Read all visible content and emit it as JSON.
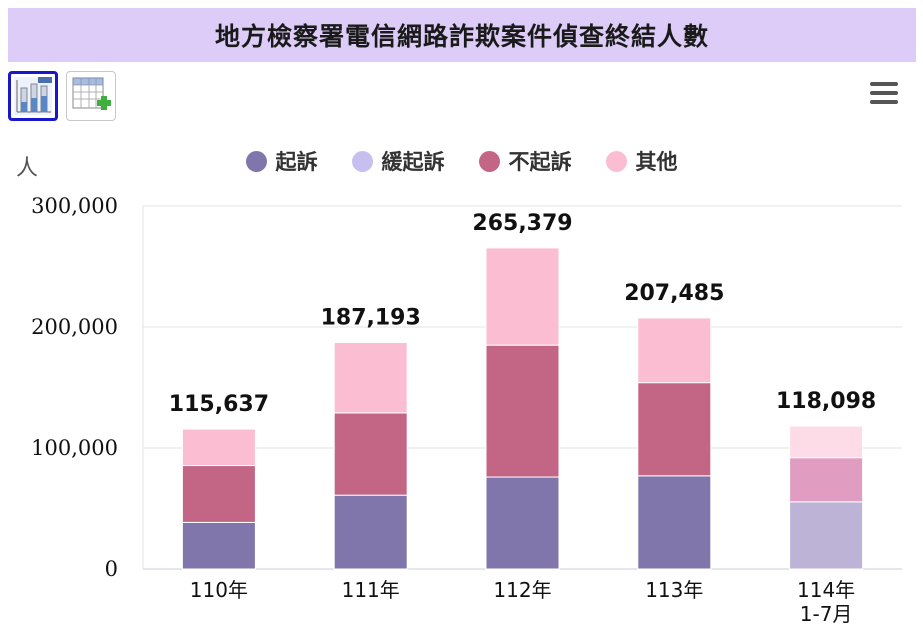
{
  "title": "地方檢察署電信網路詐欺案件偵查終結人數",
  "toolbar": {
    "chart_icon": "bar-chart-icon",
    "table_icon": "add-table-icon",
    "menu_icon": "hamburger-menu-icon"
  },
  "chart_data": {
    "type": "bar",
    "stacked": true,
    "title": "地方檢察署電信網路詐欺案件偵查終結人數",
    "ylabel": "人",
    "ylim": [
      0,
      300000
    ],
    "yticks": [
      "0",
      "100,000",
      "200,000",
      "300,000"
    ],
    "yticks_values": [
      0,
      100000,
      200000,
      300000
    ],
    "categories": [
      "110年",
      "111年",
      "112年",
      "113年",
      "114年\n1-7月"
    ],
    "series": [
      {
        "name": "起訴",
        "color": "#8076ab",
        "values": [
          38500,
          61000,
          76000,
          77000,
          55500
        ]
      },
      {
        "name": "緩起訴",
        "color": "#c7bff0",
        "values": [
          0,
          0,
          0,
          0,
          0
        ]
      },
      {
        "name": "不起訴",
        "color": "#c36685",
        "values": [
          47000,
          68000,
          109000,
          77000,
          36500
        ]
      },
      {
        "name": "其他",
        "color": "#fbbdd2",
        "values": [
          30137,
          58193,
          80379,
          53485,
          26098
        ]
      }
    ],
    "faded_category_colors": {
      "4": [
        "#bdb3d7",
        "#c7bff0",
        "#e19dc1",
        "#fddce7"
      ]
    },
    "totals": [
      "115,637",
      "187,193",
      "265,379",
      "207,485",
      "118,098"
    ],
    "legend_position": "top-center",
    "grid": true
  }
}
